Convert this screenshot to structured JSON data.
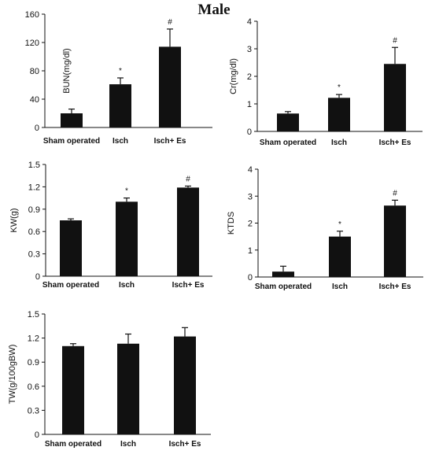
{
  "title": "Male",
  "chart_data": [
    {
      "type": "bar",
      "categories": [
        "Sham operated",
        "Isch",
        "Isch+ Es"
      ],
      "values": [
        20,
        61,
        114
      ],
      "errors": [
        6,
        9,
        25
      ],
      "annotations": [
        "",
        "*",
        "#"
      ],
      "ylabel": "BUN(mg/dl)",
      "ylim": [
        0,
        160
      ],
      "yticks": [
        "0",
        "40",
        "80",
        "120",
        "160"
      ],
      "bar_color": "#111111"
    },
    {
      "type": "bar",
      "categories": [
        "Sham operated",
        "Isch",
        "Isch+ Es"
      ],
      "values": [
        0.65,
        1.22,
        2.45
      ],
      "errors": [
        0.07,
        0.12,
        0.6
      ],
      "annotations": [
        "",
        "*",
        "#"
      ],
      "ylabel": "Cr(mg/dl)",
      "ylim": [
        0,
        4
      ],
      "yticks": [
        "0",
        "1",
        "2",
        "3",
        "4"
      ],
      "bar_color": "#111111"
    },
    {
      "type": "bar",
      "categories": [
        "Sham operated",
        "Isch",
        "Isch+ Es"
      ],
      "values": [
        0.75,
        1.0,
        1.19
      ],
      "errors": [
        0.02,
        0.05,
        0.02
      ],
      "annotations": [
        "",
        "*",
        "#"
      ],
      "ylabel": "KW(g)",
      "ylim": [
        0,
        1.5
      ],
      "yticks": [
        "0",
        "0.3",
        "0.6",
        "0.9",
        "1.2",
        "1.5"
      ],
      "bar_color": "#111111"
    },
    {
      "type": "bar",
      "categories": [
        "Sham operated",
        "Isch",
        "Isch+ Es"
      ],
      "values": [
        0.2,
        1.5,
        2.65
      ],
      "errors": [
        0.2,
        0.2,
        0.2
      ],
      "annotations": [
        "",
        "*",
        "#"
      ],
      "ylabel": "KTDS",
      "ylim": [
        0,
        4
      ],
      "yticks": [
        "0",
        "1",
        "2",
        "3",
        "4"
      ],
      "bar_color": "#111111"
    },
    {
      "type": "bar",
      "categories": [
        "Sham operated",
        "Isch",
        "Isch+ Es"
      ],
      "values": [
        1.1,
        1.13,
        1.22
      ],
      "errors": [
        0.03,
        0.12,
        0.11
      ],
      "annotations": [
        "",
        "",
        ""
      ],
      "ylabel": "TW(g/100gBW)",
      "ylim": [
        0,
        1.5
      ],
      "yticks": [
        "0",
        "0.3",
        "0.6",
        "0.9",
        "1.2",
        "1.5"
      ],
      "bar_color": "#111111"
    }
  ]
}
